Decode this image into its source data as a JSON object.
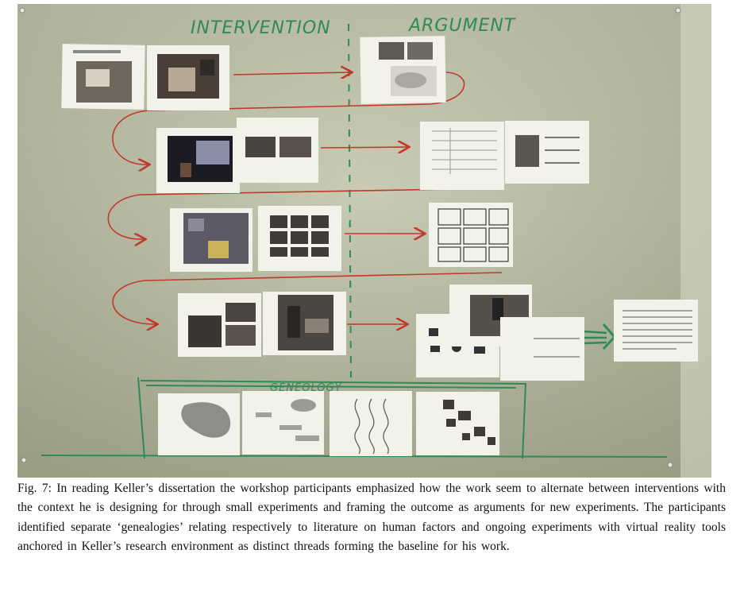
{
  "figure": {
    "photo": "photograph of a wall with printed pages pinned in a zig-zag timeline",
    "headings": {
      "left": "INTERVENTION",
      "right": "ARGUMENT",
      "bottom": "GENEOLOGY"
    },
    "colors": {
      "wall": "#b9bca4",
      "red_arrows": "#c0392b",
      "green_marker": "#2f8a5a"
    }
  },
  "caption": {
    "text": "Fig. 7:  In reading Keller’s dissertation the workshop participants emphasized how the work seem to alternate between interventions with the context he is designing for through small experiments and framing the outcome as arguments for new experiments. The participants identified separate ‘genealogies’ relating respectively to literature on human factors and ongoing experiments with virtual reality tools anchored in Keller’s research environment as distinct threads forming the baseline for his work."
  }
}
